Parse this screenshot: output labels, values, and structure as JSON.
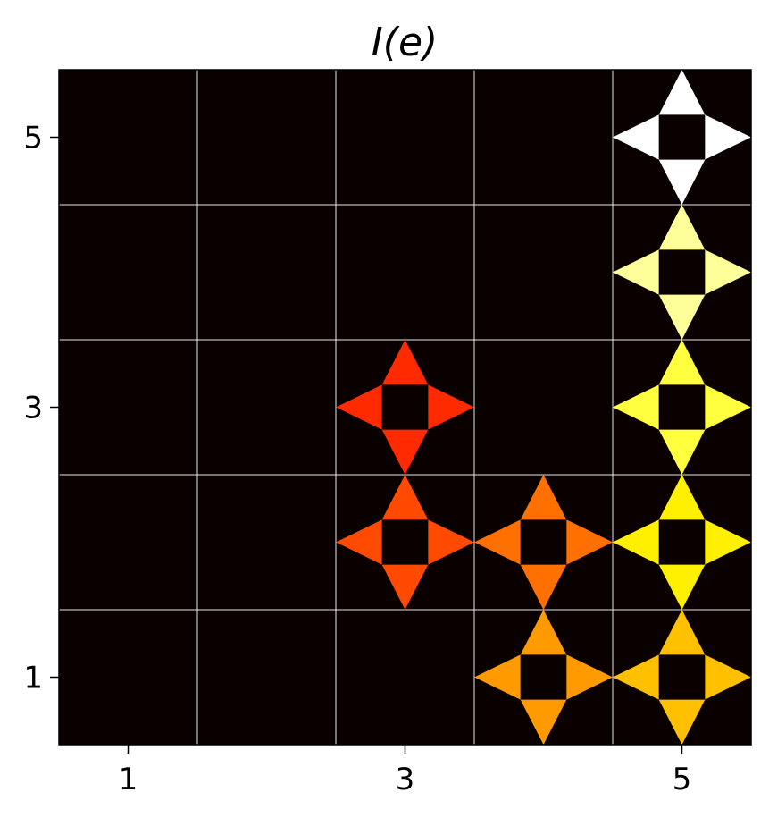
{
  "chart_data": {
    "type": "heatmap",
    "title": "I(e)",
    "xlabel": "",
    "ylabel": "",
    "xlim": [
      0.5,
      5.5
    ],
    "ylim": [
      0.5,
      5.5
    ],
    "x_ticks": [
      "1",
      "3",
      "5"
    ],
    "x_tick_values": [
      1,
      3,
      5
    ],
    "y_ticks": [
      "1",
      "3",
      "5"
    ],
    "y_tick_values": [
      1,
      3,
      5
    ],
    "grid": true,
    "background_color": "#0a0000",
    "grid_color": "#ffffff",
    "marker": "four-triangle-star",
    "cells": [
      {
        "x": 3,
        "y": 2,
        "color": "#ff4a00"
      },
      {
        "x": 3,
        "y": 3,
        "color": "#ff2a00"
      },
      {
        "x": 4,
        "y": 1,
        "color": "#ff9a00"
      },
      {
        "x": 4,
        "y": 2,
        "color": "#ff7000"
      },
      {
        "x": 5,
        "y": 1,
        "color": "#ffc000"
      },
      {
        "x": 5,
        "y": 2,
        "color": "#fff000"
      },
      {
        "x": 5,
        "y": 3,
        "color": "#ffff40"
      },
      {
        "x": 5,
        "y": 4,
        "color": "#ffff9a"
      },
      {
        "x": 5,
        "y": 5,
        "color": "#ffffff"
      }
    ]
  }
}
